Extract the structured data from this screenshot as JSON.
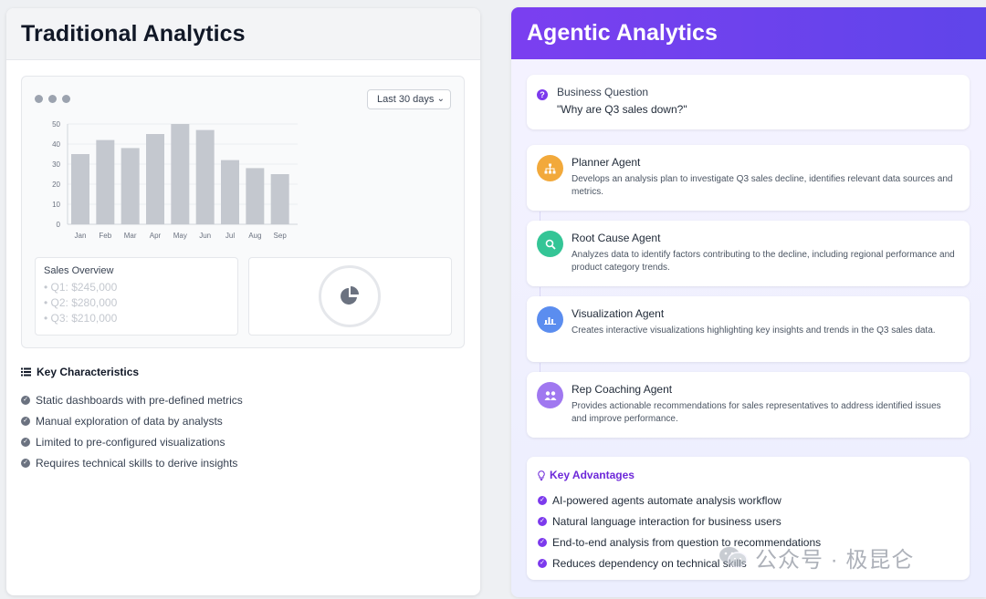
{
  "left": {
    "title": "Traditional Analytics",
    "date_range": "Last 30 days",
    "overview": {
      "title": "Sales Overview",
      "items": [
        "• Q1: $245,000",
        "• Q2: $280,000",
        "• Q3: $210,000"
      ]
    },
    "key_characteristics": {
      "title": "Key Characteristics",
      "items": [
        "Static dashboards with pre-defined metrics",
        "Manual exploration of data by analysts",
        "Limited to pre-configured visualizations",
        "Requires technical skills to derive insights"
      ]
    }
  },
  "chart_data": {
    "type": "bar",
    "categories": [
      "Jan",
      "Feb",
      "Mar",
      "Apr",
      "May",
      "Jun",
      "Jul",
      "Aug",
      "Sep"
    ],
    "values": [
      35,
      42,
      38,
      45,
      50,
      47,
      32,
      28,
      25
    ],
    "yticks": [
      0,
      10,
      20,
      30,
      40,
      50
    ],
    "ylim": [
      0,
      50
    ],
    "bar_color": "#c4c8cf",
    "grid": true
  },
  "right": {
    "title": "Agentic Analytics",
    "business_question": {
      "label": "Business Question",
      "text": "\"Why are Q3 sales down?\""
    },
    "agents": [
      {
        "name": "Planner Agent",
        "desc": "Develops an analysis plan to investigate Q3 sales decline, identifies relevant data sources and metrics.",
        "color": "#f2a93b",
        "icon": "sitemap-icon"
      },
      {
        "name": "Root Cause Agent",
        "desc": "Analyzes data to identify factors contributing to the decline, including regional performance and product category trends.",
        "color": "#34c596",
        "icon": "search-icon"
      },
      {
        "name": "Visualization Agent",
        "desc": "Creates interactive visualizations highlighting key insights and trends in the Q3 sales data.",
        "color": "#5b8def",
        "icon": "chart-icon"
      },
      {
        "name": "Rep Coaching Agent",
        "desc": "Provides actionable recommendations for sales representatives to address identified issues and improve performance.",
        "color": "#a078f0",
        "icon": "users-icon"
      }
    ],
    "key_advantages": {
      "title": "Key Advantages",
      "items": [
        "AI-powered agents automate analysis workflow",
        "Natural language interaction for business users",
        "End-to-end analysis from question to recommendations",
        "Reduces dependency on technical skills"
      ]
    }
  },
  "watermark": "公众号 · 极昆仑",
  "colors": {
    "accent": "#7c3aed",
    "header_gradient_start": "#7b3ff0",
    "header_gradient_end": "#5f45ea"
  }
}
